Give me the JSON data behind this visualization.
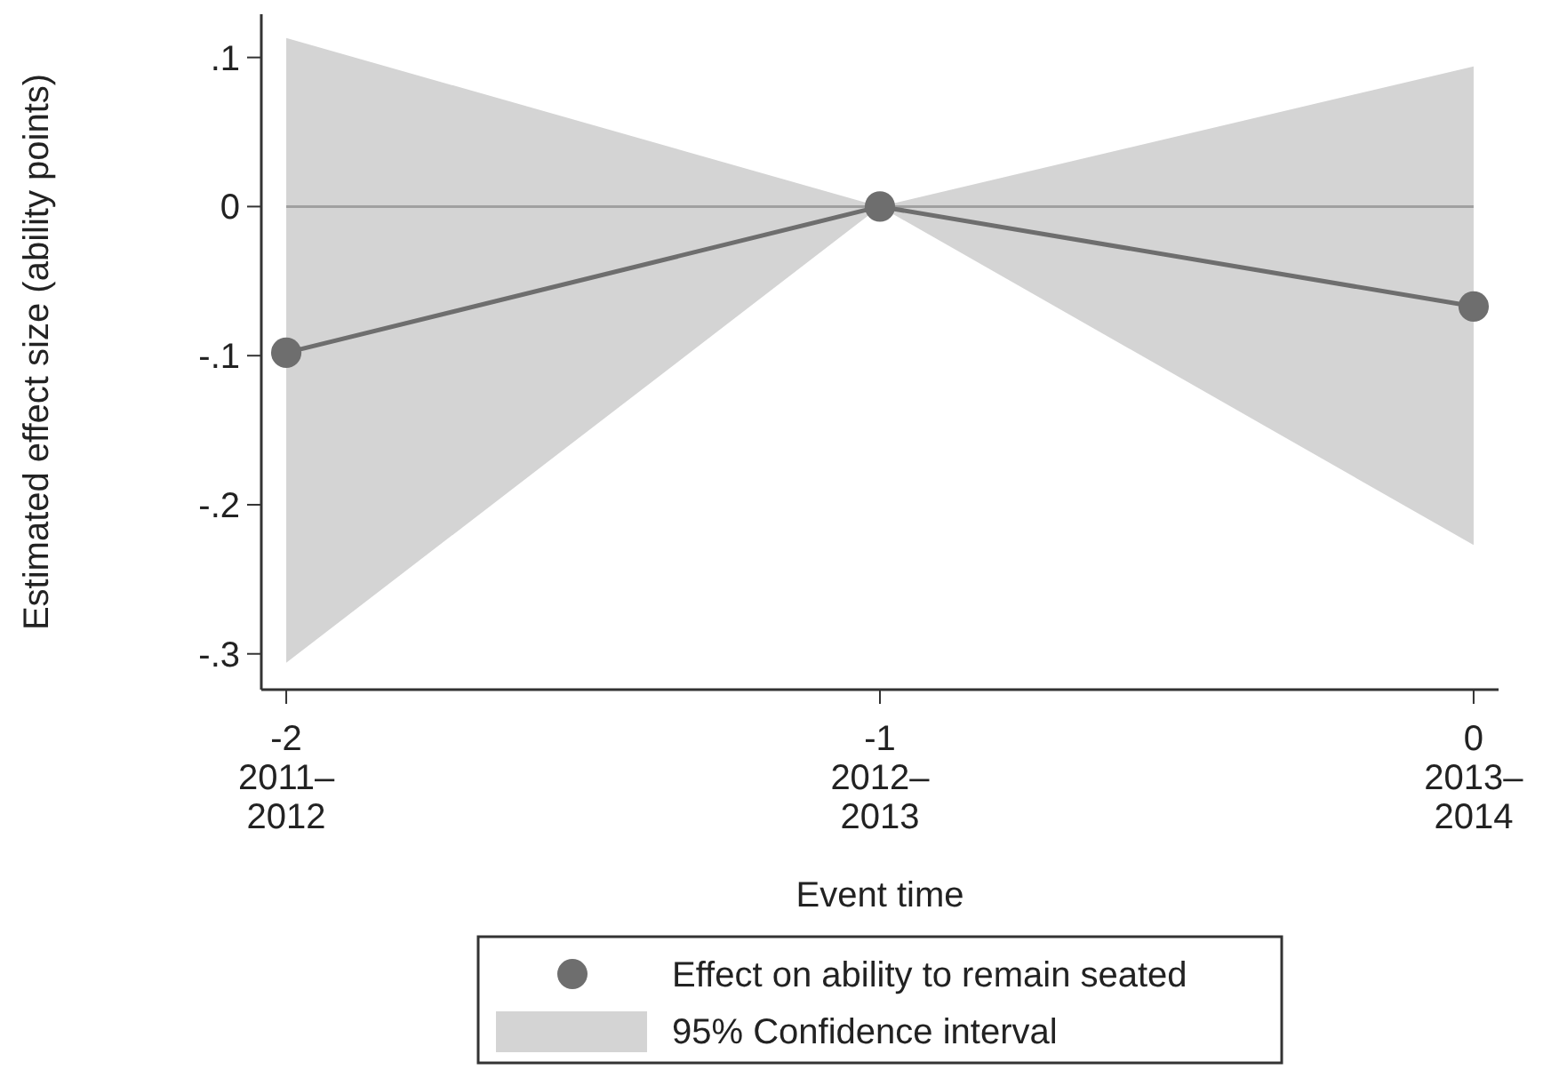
{
  "chart_data": {
    "type": "line",
    "xlabel": "Event time",
    "ylabel": "Estimated effect size (ability points)",
    "categories": [
      "-2\n2011–\n2012",
      "-1\n2012–\n2013",
      "0\n2013–\n2014"
    ],
    "series": [
      {
        "name": "Effect on ability to remain seated",
        "color": "#6e6e6e",
        "marker": "circle",
        "values": [
          -0.098,
          0,
          -0.067
        ],
        "lower": [
          -0.306,
          0,
          -0.227
        ],
        "upper": [
          0.113,
          0,
          0.094
        ]
      }
    ],
    "annotations": [
      "95% Confidence interval"
    ],
    "ylim": [
      -0.324,
      0.129
    ],
    "yticks": [
      {
        "value": 0.1,
        "label": ".1"
      },
      {
        "value": 0,
        "label": "0"
      },
      {
        "value": -0.1,
        "label": "-.1"
      },
      {
        "value": -0.2,
        "label": "-.2"
      },
      {
        "value": -0.3,
        "label": "-.3"
      }
    ],
    "ref_lines": [
      {
        "axis": "y",
        "value": 0,
        "color": "#a0a0a0"
      }
    ],
    "grid": false,
    "legend": "bottom"
  }
}
